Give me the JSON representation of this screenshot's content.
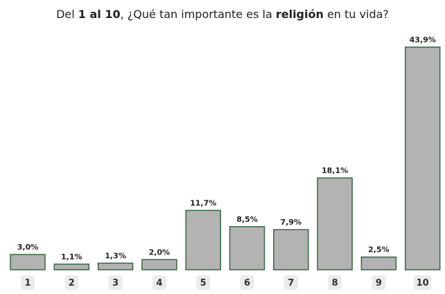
{
  "chart_data": {
    "type": "bar",
    "title_parts": [
      {
        "text": "Del ",
        "bold": false
      },
      {
        "text": "1 al 10",
        "bold": true
      },
      {
        "text": ", ¿Qué tan importante es la ",
        "bold": false
      },
      {
        "text": "religión",
        "bold": true
      },
      {
        "text": " en tu vida?",
        "bold": false
      }
    ],
    "categories": [
      "1",
      "2",
      "3",
      "4",
      "5",
      "6",
      "7",
      "8",
      "9",
      "10"
    ],
    "values": [
      3.0,
      1.1,
      1.3,
      2.0,
      11.7,
      8.5,
      7.9,
      18.1,
      2.5,
      43.9
    ],
    "value_labels": [
      "3,0%",
      "1,1%",
      "1,3%",
      "2,0%",
      "11,7%",
      "8,5%",
      "7,9%",
      "18,1%",
      "2,5%",
      "43,9%"
    ],
    "color": "#b3b3b3",
    "edge_color": "#2f6a3b"
  }
}
